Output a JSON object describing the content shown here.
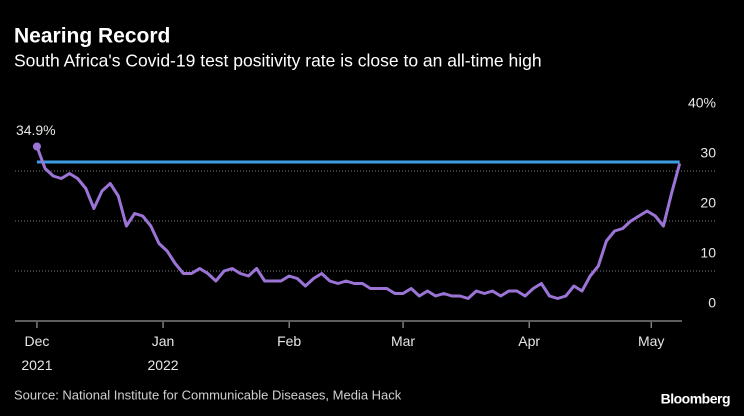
{
  "chart_data": {
    "type": "line",
    "title": "Nearing Record",
    "subtitle": "South Africa's Covid-19 test positivity rate is close to an all-time high",
    "source": "Source: National Institute for Communicable Diseases, Media Hack",
    "brand": "Bloomberg",
    "x": [
      0,
      2,
      4,
      6,
      8,
      10,
      12,
      14,
      16,
      18,
      20,
      22,
      24,
      26,
      28,
      30,
      32,
      34,
      36,
      38,
      40,
      42,
      44,
      46,
      48,
      50,
      52,
      54,
      56,
      58,
      60,
      62,
      64,
      66,
      68,
      70,
      72,
      74,
      76,
      78,
      80,
      82,
      84,
      86,
      88,
      90,
      92,
      94,
      96,
      98,
      100,
      102,
      104,
      106,
      108,
      110,
      112,
      114,
      116,
      118,
      120,
      122,
      124,
      126,
      128,
      130,
      132,
      134,
      136,
      138,
      140,
      142,
      144,
      146,
      148,
      150,
      152,
      154,
      156,
      158
    ],
    "series": [
      {
        "color": "#9b74d6",
        "values": [
          34.9,
          30.5,
          29,
          28.5,
          29.5,
          28.5,
          26.5,
          22.5,
          26,
          27.5,
          25,
          19,
          21.5,
          21,
          19,
          15.5,
          14,
          11.5,
          9.5,
          9.5,
          10.5,
          9.5,
          8,
          10,
          10.5,
          9.5,
          9,
          10.5,
          8,
          8,
          8,
          9,
          8.5,
          7,
          8.5,
          9.5,
          8,
          7.5,
          8,
          7.5,
          7.5,
          6.5,
          6.5,
          6.5,
          5.5,
          5.5,
          6.5,
          5,
          6,
          5,
          5.5,
          5,
          5,
          4.5,
          6,
          5.5,
          6,
          5,
          6,
          6,
          5,
          6.5,
          7.5,
          5,
          4.5,
          5,
          7,
          6,
          9,
          11,
          16,
          18,
          18.5,
          20,
          21,
          22,
          21,
          19,
          25.5,
          31.5
        ],
        "value_labels": [
          "34.9%",
          null,
          null,
          null,
          null,
          null,
          null,
          null,
          null,
          null,
          null,
          null,
          null,
          null,
          null,
          null,
          null,
          null,
          null,
          null,
          null,
          null,
          null,
          null,
          null,
          null,
          null,
          null,
          null,
          null,
          null,
          null,
          null,
          null,
          null,
          null,
          null,
          null,
          null,
          null,
          null,
          null,
          null,
          null,
          null,
          null,
          null,
          null,
          null,
          null,
          null,
          null,
          null,
          null,
          null,
          null,
          null,
          null,
          null,
          null,
          null,
          null,
          null,
          null,
          null,
          null,
          null,
          null,
          null,
          null,
          null,
          null,
          null,
          null,
          null,
          null,
          null,
          null,
          null,
          null
        ]
      }
    ],
    "reference_line": {
      "value": 31.8,
      "color": "#3d9de3"
    },
    "xlim": [
      -5,
      163
    ],
    "xticks": [
      {
        "value": 0,
        "label": "Dec 2021"
      },
      {
        "value": 31,
        "label": "Jan 2022"
      },
      {
        "value": 62,
        "label": "Feb"
      },
      {
        "value": 90,
        "label": "Mar"
      },
      {
        "value": 121,
        "label": "Apr"
      },
      {
        "value": 151,
        "label": "May"
      }
    ],
    "ylim": [
      0,
      40
    ],
    "yticks": [
      0,
      10,
      20,
      30,
      {
        "value": 40,
        "label": "40%"
      }
    ],
    "grid": true
  }
}
